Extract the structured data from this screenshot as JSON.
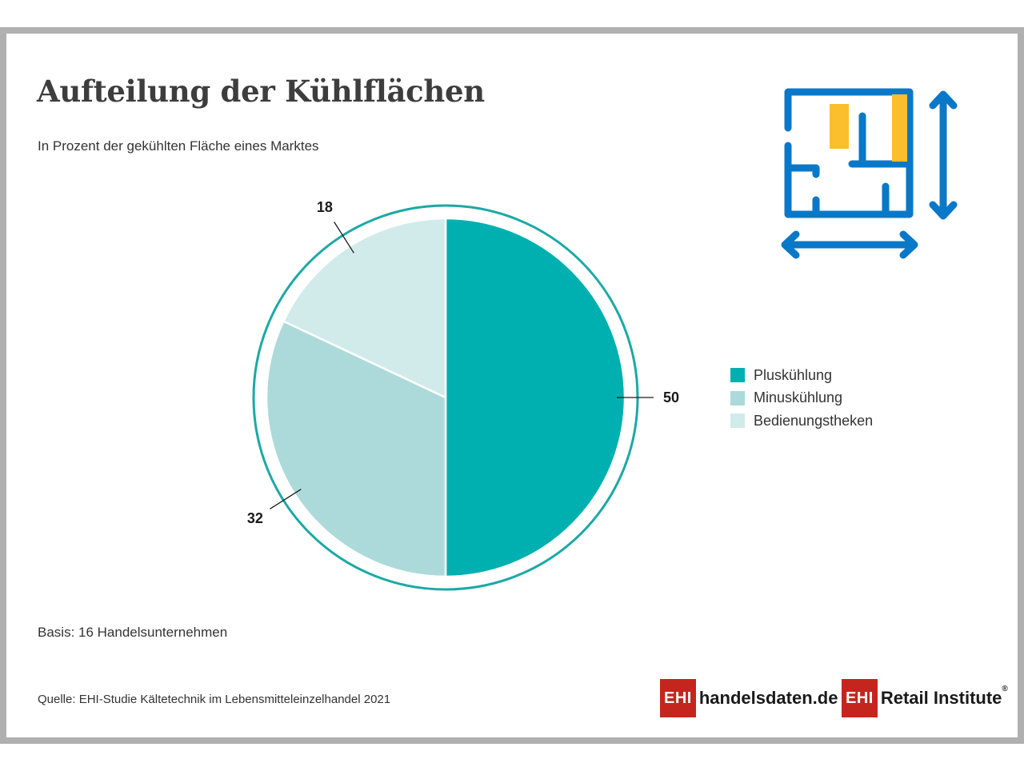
{
  "title": "Aufteilung der Kühlflächen",
  "subtitle": "In Prozent der gekühlten Fläche eines Marktes",
  "basis": "Basis: 16 Handelsunternehmen",
  "source": "Quelle: EHI-Studie Kältetechnik im Lebensmitteleinzelhandel 2021",
  "logos": {
    "handelsdaten_badge": "EHI",
    "handelsdaten_text": "handelsdaten.de",
    "retail_badge": "EHI",
    "retail_text": "Retail Institute",
    "retail_reg": "®"
  },
  "chart_data": {
    "type": "pie",
    "categories": [
      "Pluskühlung",
      "Minuskühlung",
      "Bedienungstheken"
    ],
    "values": [
      50,
      32,
      18
    ],
    "colors": [
      "#00b0b0",
      "#acdadb",
      "#d1ebeb"
    ],
    "ring_color": "#1ba9a6",
    "legend": "right"
  },
  "icon": {
    "name": "floor-plan-icon",
    "blue": "#0a78c8",
    "yellow": "#fbbf2d"
  }
}
